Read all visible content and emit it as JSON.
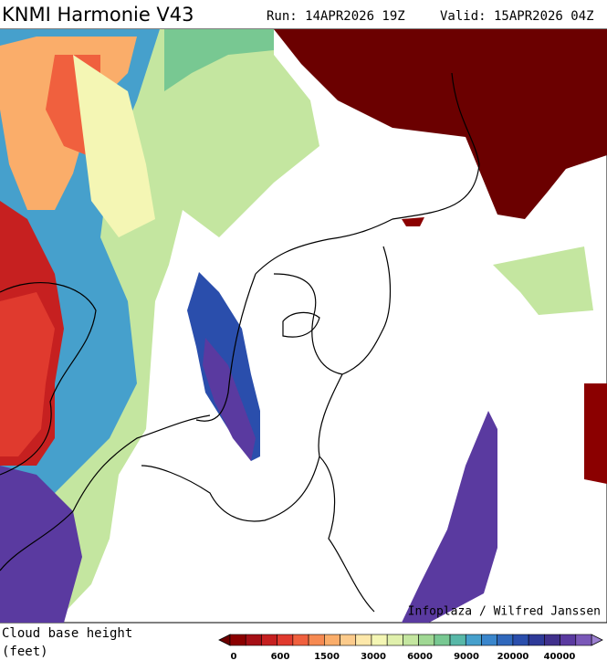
{
  "header": {
    "title": "KNMI Harmonie V43",
    "run": "Run: 14APR2026 19Z",
    "valid": "Valid: 15APR2026 04Z"
  },
  "credit": "Infoplaza / Wilfred Janssen",
  "legend": {
    "label": [
      "Cloud base height",
      "(feet)"
    ],
    "ticks": [
      "0",
      "600",
      "1500",
      "3000",
      "6000",
      "9000",
      "20000",
      "40000"
    ],
    "colors": [
      "#6b0000",
      "#8b0000",
      "#a50f15",
      "#c62020",
      "#e03a2e",
      "#f0603e",
      "#f68a52",
      "#faad6a",
      "#fccb8c",
      "#fde8aa",
      "#f4f6b4",
      "#e0f0ac",
      "#c4e6a0",
      "#a0d894",
      "#78c892",
      "#58b8a8",
      "#46a0cc",
      "#3a86cc",
      "#3068bc",
      "#2a4eac",
      "#2e3a98",
      "#40308c",
      "#5a3aa0",
      "#7a58b8",
      "#9c80d0"
    ]
  }
}
